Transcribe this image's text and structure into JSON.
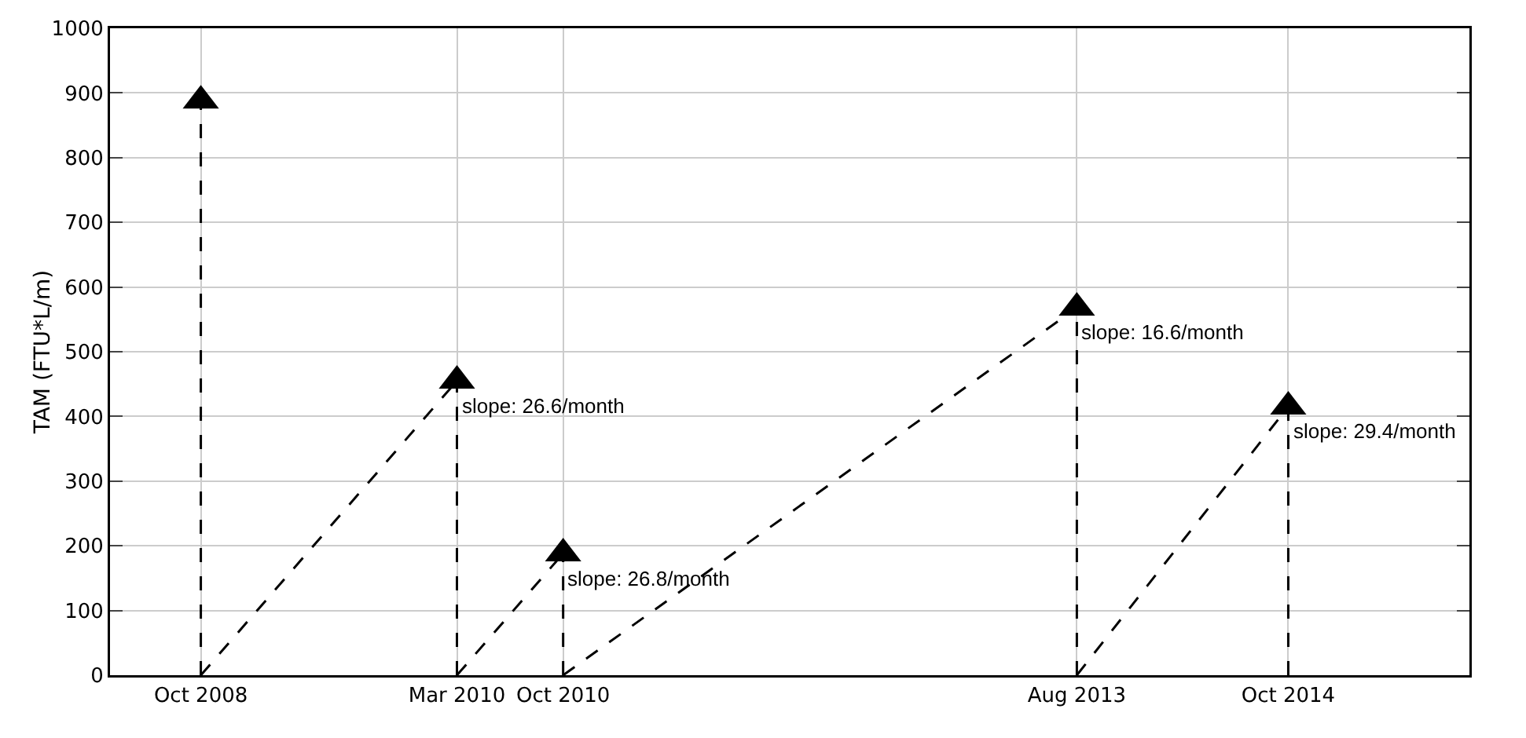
{
  "chart_data": {
    "type": "lollipop",
    "ylabel": "TAM (FTU*L/m)",
    "xlim": [
      "2008-04",
      "2015-10"
    ],
    "ylim": [
      0,
      1000
    ],
    "xticks": [
      {
        "value": "2008-10",
        "label": "Oct 2008"
      },
      {
        "value": "2010-03",
        "label": "Mar 2010"
      },
      {
        "value": "2010-10",
        "label": "Oct 2010"
      },
      {
        "value": "2013-08",
        "label": "Aug 2013"
      },
      {
        "value": "2014-10",
        "label": "Oct 2014"
      }
    ],
    "yticks": [
      0,
      100,
      200,
      300,
      400,
      500,
      600,
      700,
      800,
      900,
      1000
    ],
    "grid": true,
    "marker": "triangle",
    "line_style": "dashed",
    "series": [
      {
        "color": "#000000",
        "x": [
          "2008-10",
          "2010-03",
          "2010-10",
          "2013-08",
          "2014-10"
        ],
        "values": [
          888,
          455,
          188,
          568,
          415
        ]
      },
      {
        "type": "line",
        "color": "#000000",
        "marker": "none",
        "x": [
          "2008-10",
          "2010-03"
        ],
        "values": [
          0,
          455
        ]
      },
      {
        "type": "line",
        "color": "#000000",
        "marker": "none",
        "x": [
          "2010-03",
          "2010-10"
        ],
        "values": [
          0,
          188
        ]
      },
      {
        "type": "line",
        "color": "#000000",
        "marker": "none",
        "x": [
          "2010-10",
          "2013-08"
        ],
        "values": [
          0,
          568
        ]
      },
      {
        "type": "line",
        "color": "#000000",
        "marker": "none",
        "x": [
          "2013-08",
          "2014-10"
        ],
        "values": [
          0,
          415
        ]
      }
    ],
    "annotations": [
      {
        "text": "slope: 26.6/month",
        "x": "2010-03",
        "y": 455
      },
      {
        "text": "slope: 26.8/month",
        "x": "2010-10",
        "y": 188
      },
      {
        "text": "slope: 16.6/month",
        "x": "2013-08",
        "y": 568
      },
      {
        "text": "slope: 29.4/month",
        "x": "2014-10",
        "y": 415
      }
    ]
  }
}
